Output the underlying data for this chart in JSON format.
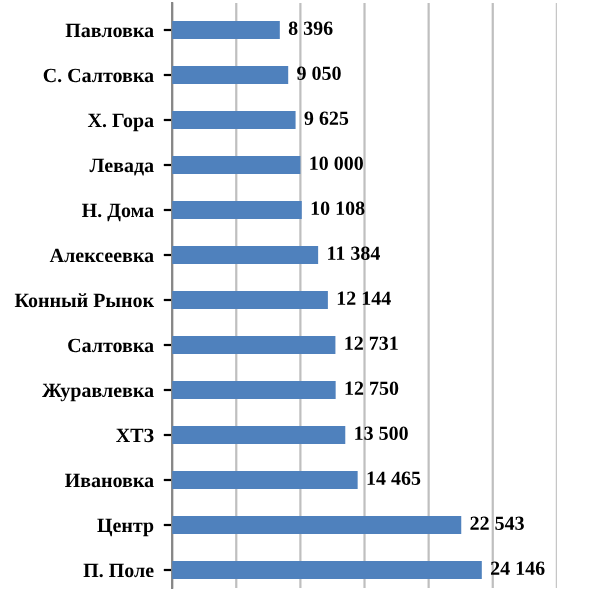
{
  "chart_data": {
    "type": "bar",
    "orientation": "horizontal",
    "categories": [
      "Павловка",
      "С. Салтовка",
      "Х. Гора",
      "Левада",
      "Н. Дома",
      "Алексеевка",
      "Конный Рынок",
      "Салтовка",
      "Журавлевка",
      "ХТЗ",
      "Ивановка",
      "Центр",
      "П. Поле"
    ],
    "values": [
      8396,
      9050,
      9625,
      10000,
      10108,
      11384,
      12144,
      12731,
      12750,
      13500,
      14465,
      22543,
      24146
    ],
    "value_labels": [
      "8 396",
      "9 050",
      "9 625",
      "10 000",
      "10 108",
      "11 384",
      "12 144",
      "12 731",
      "12 750",
      "13 500",
      "14 465",
      "22 543",
      "24 146"
    ],
    "color": "#4f81bd",
    "xlim": [
      0,
      30000
    ],
    "xticks": [
      {
        "value": 0,
        "label": null
      },
      {
        "value": 5000,
        "label": null
      },
      {
        "value": 10000,
        "label": null
      },
      {
        "value": 15000,
        "label": null
      },
      {
        "value": 20000,
        "label": null
      },
      {
        "value": 25000,
        "label": null
      },
      {
        "value": 30000,
        "label": null
      }
    ],
    "grid": "x",
    "tick_labels": "y",
    "legend": false
  }
}
